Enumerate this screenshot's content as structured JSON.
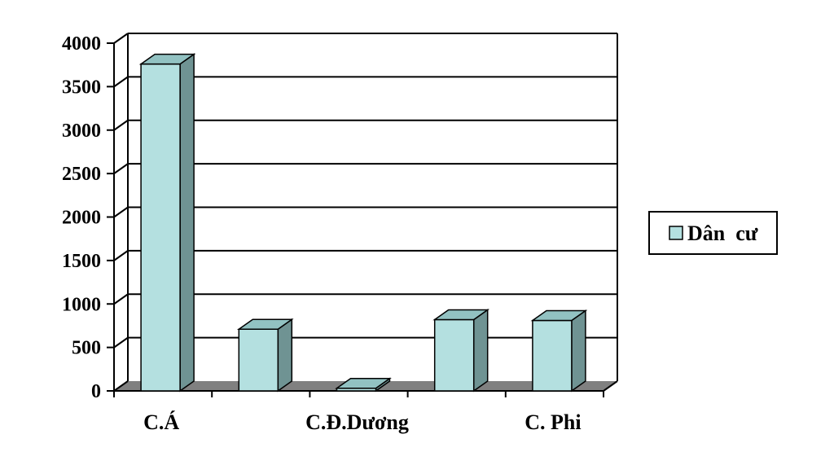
{
  "chart_data": {
    "type": "bar",
    "categories": [
      "C.Á",
      "",
      "C.Đ.Dương",
      "",
      "C. Phi"
    ],
    "series": [
      {
        "name": "Dân  cư",
        "values": [
          3760,
          710,
          30,
          820,
          810
        ]
      }
    ],
    "y_ticks": [
      "0",
      "500",
      "1000",
      "1500",
      "2000",
      "2500",
      "3000",
      "3500",
      "4000"
    ],
    "ylim": [
      0,
      4000
    ],
    "grid": true,
    "legend": "right",
    "colors": {
      "bar_front": "#b4e0e0",
      "bar_side": "#6f9393",
      "bar_top": "#92c2c2",
      "floor": "#808080",
      "grid": "#000000"
    }
  }
}
